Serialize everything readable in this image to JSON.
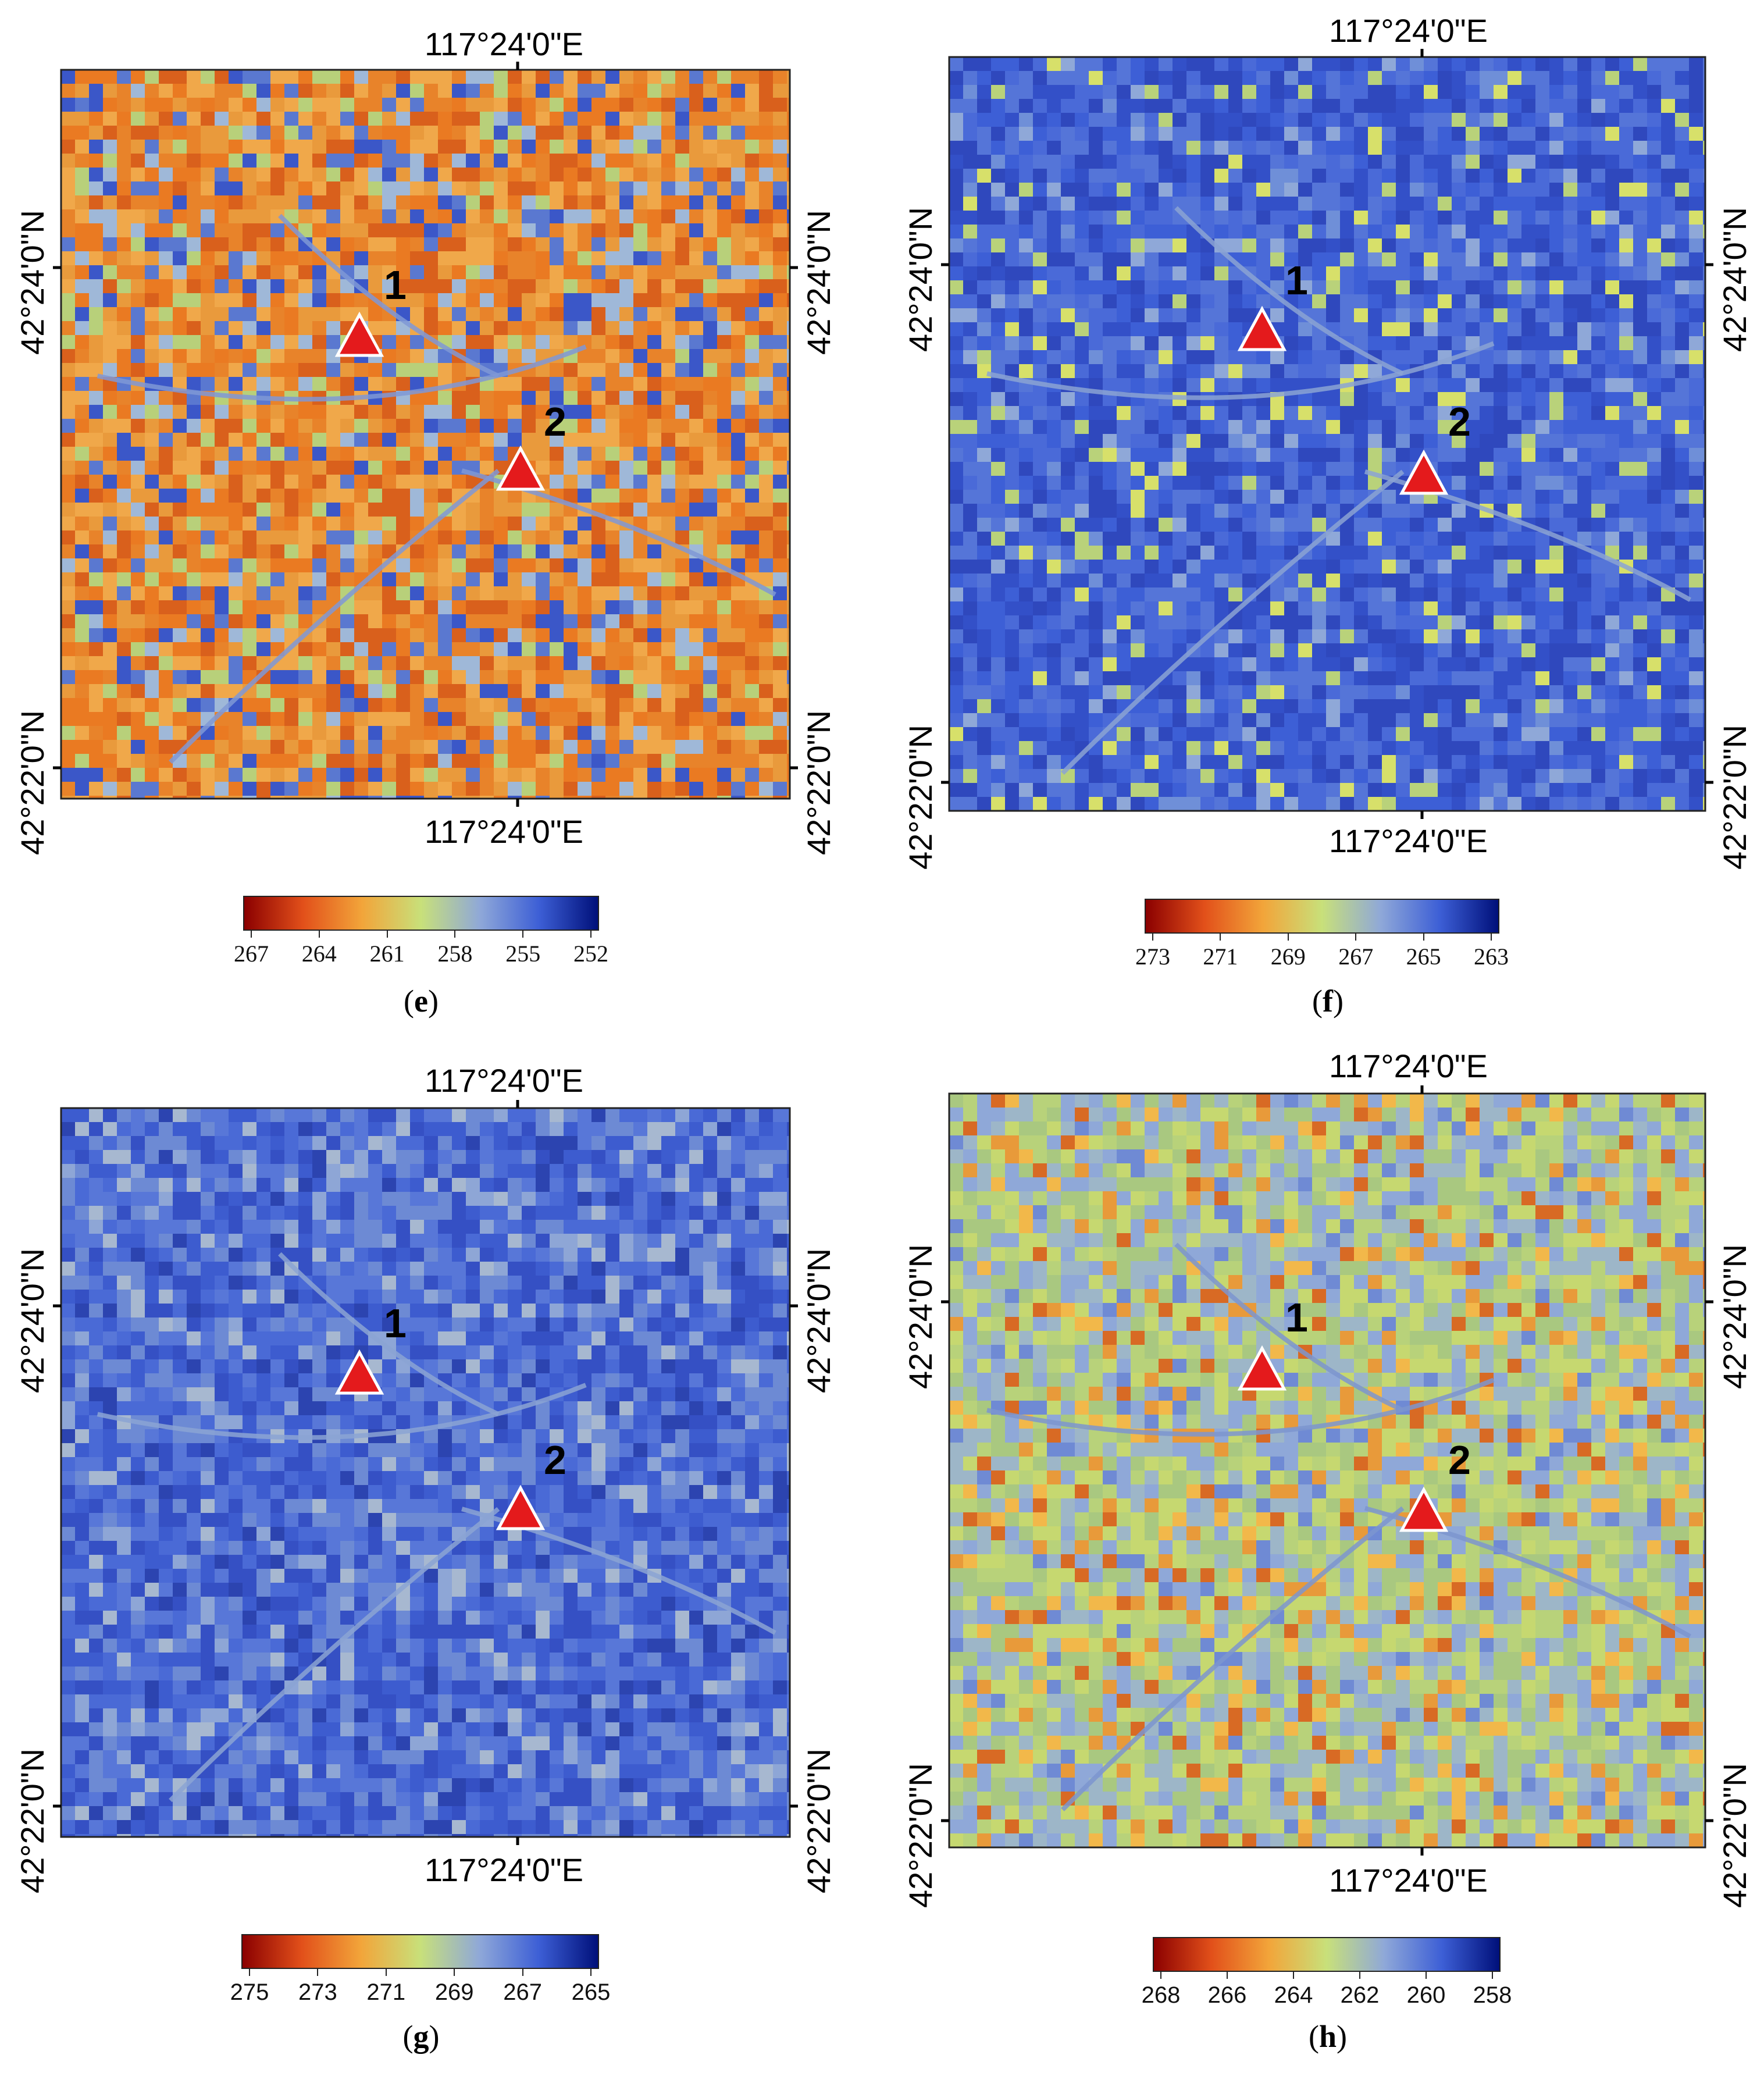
{
  "colors": {
    "triangle_fill": "#e41a1c",
    "triangle_stroke": "#ffffff",
    "frame": "#222222",
    "colormap": [
      "#8b0000",
      "#e2501a",
      "#f2a53a",
      "#c8e07a",
      "#8fa8d8",
      "#3d5fd6",
      "#00107a"
    ]
  },
  "panels": [
    {
      "id": "e",
      "caption_letter": "e",
      "theme": "warm",
      "lon_label_top": "117°24'0\"E",
      "lon_label_bottom": "117°24'0\"E",
      "lat_label_upper": "42°24'0\"N",
      "lat_label_lower": "42°22'0\"N",
      "sites": [
        {
          "label": "1"
        },
        {
          "label": "2"
        }
      ],
      "colorbar_ticks": [
        "267",
        "264",
        "261",
        "258",
        "255",
        "252"
      ],
      "colorbar_font": "serif"
    },
    {
      "id": "f",
      "caption_letter": "f",
      "theme": "cool",
      "lon_label_top": "117°24'0\"E",
      "lon_label_bottom": "117°24'0\"E",
      "lat_label_upper": "42°24'0\"N",
      "lat_label_lower": "42°22'0\"N",
      "sites": [
        {
          "label": "1"
        },
        {
          "label": "2"
        }
      ],
      "colorbar_ticks": [
        "273",
        "271",
        "269",
        "267",
        "265",
        "263"
      ],
      "colorbar_font": "serif"
    },
    {
      "id": "g",
      "caption_letter": "g",
      "theme": "blue",
      "lon_label_top": "117°24'0\"E",
      "lon_label_bottom": "117°24'0\"E",
      "lat_label_upper": "42°24'0\"N",
      "lat_label_lower": "42°22'0\"N",
      "sites": [
        {
          "label": "1"
        },
        {
          "label": "2"
        }
      ],
      "colorbar_ticks": [
        "275",
        "273",
        "271",
        "269",
        "267",
        "265"
      ],
      "colorbar_font": "sans"
    },
    {
      "id": "h",
      "caption_letter": "h",
      "theme": "mixed",
      "lon_label_top": "117°24'0\"E",
      "lon_label_bottom": "117°24'0\"E",
      "lat_label_upper": "42°24'0\"N",
      "lat_label_lower": "42°22'0\"N",
      "sites": [
        {
          "label": "1"
        },
        {
          "label": "2"
        }
      ],
      "colorbar_ticks": [
        "268",
        "266",
        "264",
        "262",
        "260",
        "258"
      ],
      "colorbar_font": "sans"
    }
  ]
}
